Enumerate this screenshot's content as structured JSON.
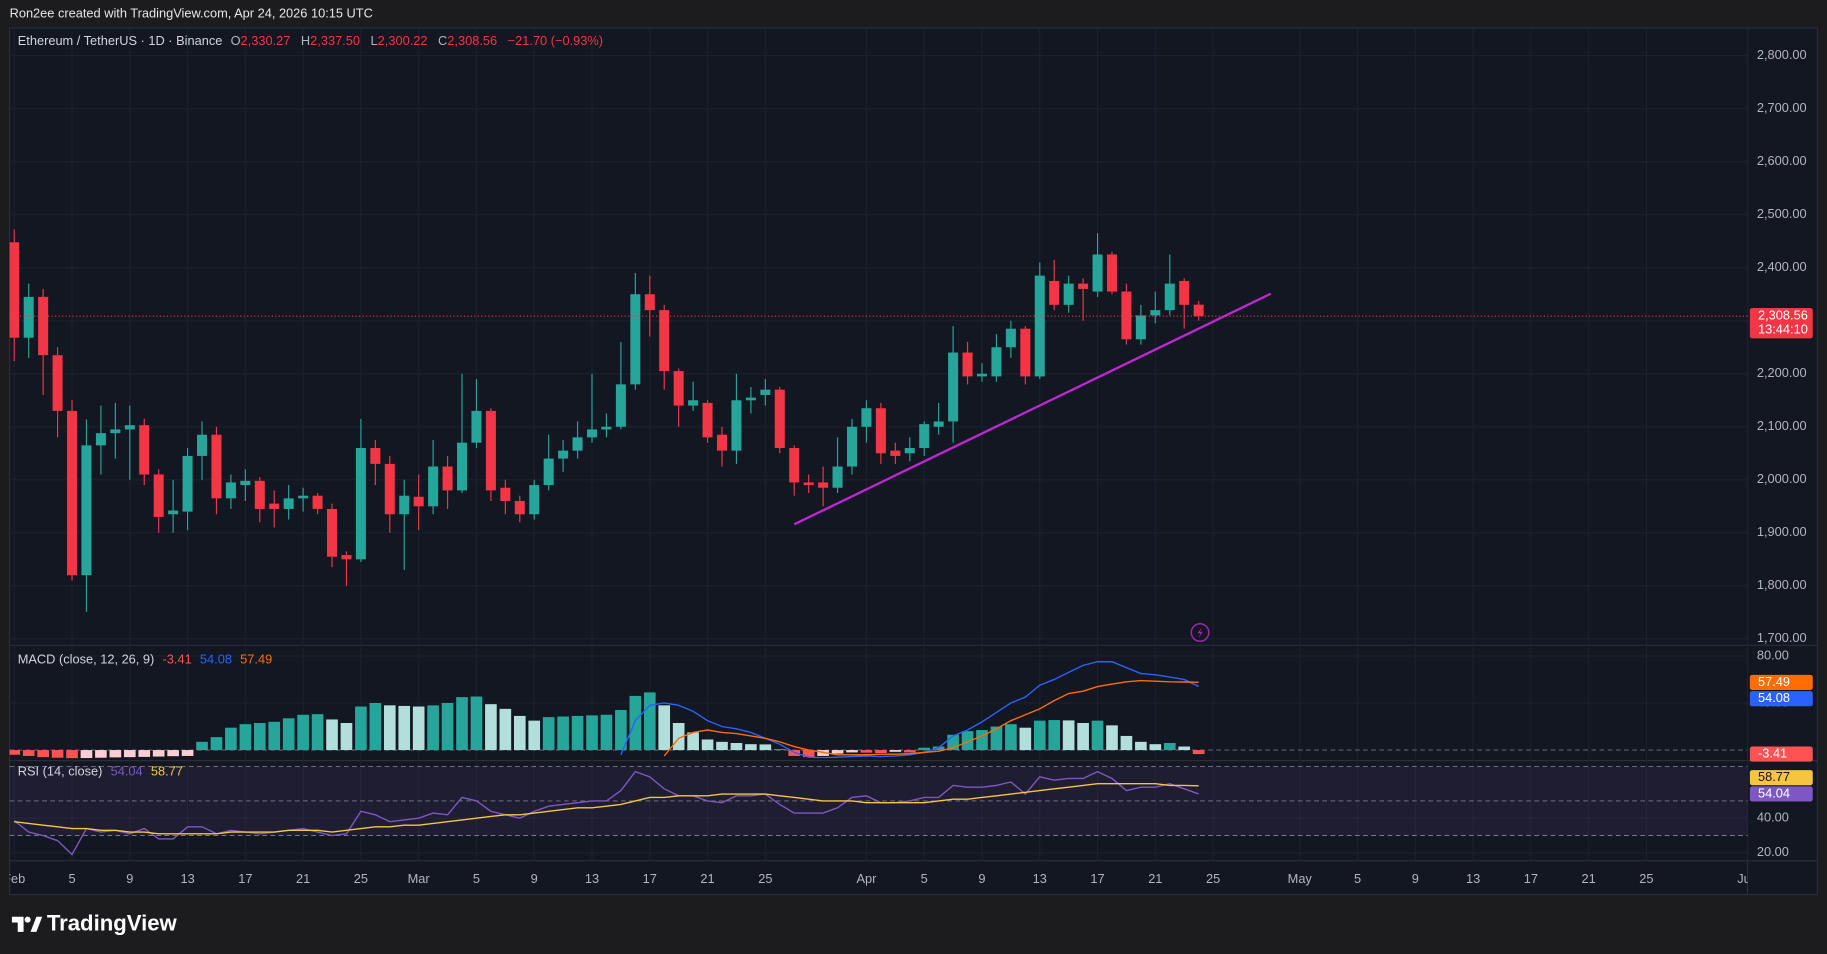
{
  "header": {
    "attribution": "Ron2ee created with TradingView.com, Apr 24, 2026 10:15 UTC"
  },
  "footer": {
    "brand": "TradingView"
  },
  "chart_data": [
    {
      "type": "candlestick",
      "symbol": "Ethereum / TetherUS · 1D · Binance",
      "ohlc_legend": [
        {
          "key": "O",
          "label": "2,330.27"
        },
        {
          "key": "H",
          "label": "2,337.50"
        },
        {
          "key": "L",
          "label": "2,300.22"
        },
        {
          "key": "C",
          "label": "2,308.56"
        }
      ],
      "change_label": "−21.70 (−0.93%)",
      "categories": [
        "Feb 1",
        "Feb 2",
        "Feb 3",
        "Feb 4",
        "Feb 5",
        "Feb 6",
        "Feb 7",
        "Feb 8",
        "Feb 9",
        "Feb 10",
        "Feb 11",
        "Feb 12",
        "Feb 13",
        "Feb 14",
        "Feb 15",
        "Feb 16",
        "Feb 17",
        "Feb 18",
        "Feb 19",
        "Feb 20",
        "Feb 21",
        "Feb 22",
        "Feb 23",
        "Feb 24",
        "Feb 25",
        "Feb 26",
        "Feb 27",
        "Feb 28",
        "Mar 1",
        "Mar 2",
        "Mar 3",
        "Mar 4",
        "Mar 5",
        "Mar 6",
        "Mar 7",
        "Mar 8",
        "Mar 9",
        "Mar 10",
        "Mar 11",
        "Mar 12",
        "Mar 13",
        "Mar 14",
        "Mar 15",
        "Mar 16",
        "Mar 17",
        "Mar 18",
        "Mar 19",
        "Mar 20",
        "Mar 21",
        "Mar 22",
        "Mar 23",
        "Mar 24",
        "Mar 25",
        "Mar 26",
        "Mar 27",
        "Mar 28",
        "Mar 29",
        "Mar 30",
        "Mar 31",
        "Apr 1",
        "Apr 2",
        "Apr 3",
        "Apr 4",
        "Apr 5",
        "Apr 6",
        "Apr 7",
        "Apr 8",
        "Apr 9",
        "Apr 10",
        "Apr 11",
        "Apr 12",
        "Apr 13",
        "Apr 14",
        "Apr 15",
        "Apr 16",
        "Apr 17",
        "Apr 18",
        "Apr 19",
        "Apr 20",
        "Apr 21",
        "Apr 22",
        "Apr 23",
        "Apr 24"
      ],
      "open": [
        2448,
        2268,
        2345,
        2235,
        2130,
        1820,
        2065,
        2088,
        2095,
        2103,
        2010,
        1935,
        1940,
        2045,
        2085,
        1965,
        1990,
        1998,
        1955,
        1945,
        1965,
        1970,
        1945,
        1858,
        1850,
        2060,
        2030,
        1935,
        1968,
        1950,
        2025,
        1980,
        2070,
        2130,
        1985,
        1960,
        1935,
        1990,
        2040,
        2055,
        2080,
        2095,
        2100,
        2180,
        2350,
        2320,
        2205,
        2140,
        2145,
        2085,
        2055,
        2150,
        2160,
        2170,
        2060,
        1995,
        1995,
        1985,
        2025,
        2100,
        2135,
        2055,
        2050,
        2060,
        2100,
        2110,
        2240,
        2195,
        2195,
        2250,
        2285,
        2195,
        2375,
        2330,
        2370,
        2355,
        2425,
        2355,
        2265,
        2310,
        2320,
        2375,
        2330.27
      ],
      "high": [
        2472,
        2370,
        2360,
        2250,
        2150,
        2114,
        2140,
        2145,
        2140,
        2115,
        2020,
        2000,
        2060,
        2110,
        2100,
        2010,
        2020,
        2005,
        1980,
        1990,
        1985,
        1975,
        1955,
        1865,
        2115,
        2075,
        2045,
        2000,
        2010,
        2075,
        2045,
        2200,
        2190,
        2135,
        2000,
        1970,
        2000,
        2085,
        2075,
        2110,
        2200,
        2125,
        2260,
        2390,
        2385,
        2330,
        2210,
        2185,
        2150,
        2100,
        2200,
        2175,
        2190,
        2175,
        2065,
        2010,
        2025,
        2080,
        2115,
        2150,
        2145,
        2070,
        2080,
        2110,
        2145,
        2290,
        2260,
        2220,
        2275,
        2300,
        2290,
        2410,
        2415,
        2385,
        2380,
        2465,
        2430,
        2370,
        2330,
        2355,
        2425,
        2380,
        2337.5
      ],
      "low": [
        2224,
        2230,
        2160,
        2080,
        1810,
        1751,
        2010,
        2040,
        2000,
        1990,
        1900,
        1900,
        1905,
        2000,
        1935,
        1945,
        1960,
        1920,
        1910,
        1925,
        1940,
        1935,
        1835,
        1800,
        1845,
        1990,
        1900,
        1830,
        1905,
        1935,
        1945,
        1975,
        2060,
        1960,
        1935,
        1920,
        1925,
        1980,
        2015,
        2040,
        2070,
        2080,
        2095,
        2170,
        2270,
        2170,
        2100,
        2130,
        2070,
        2025,
        2030,
        2125,
        2140,
        2050,
        1970,
        1975,
        1950,
        1975,
        2010,
        2070,
        2030,
        2030,
        2035,
        2045,
        2085,
        2070,
        2180,
        2185,
        2185,
        2230,
        2180,
        2190,
        2320,
        2315,
        2300,
        2345,
        2350,
        2255,
        2255,
        2295,
        2310,
        2285,
        2300.22
      ],
      "close": [
        2268,
        2345,
        2235,
        2130,
        1820,
        2065,
        2088,
        2095,
        2103,
        2010,
        1930,
        1942,
        2045,
        2085,
        1965,
        1995,
        1998,
        1945,
        1945,
        1965,
        1970,
        1945,
        1855,
        1850,
        2060,
        2030,
        1935,
        1970,
        1950,
        2025,
        1980,
        2070,
        2130,
        1980,
        1960,
        1935,
        1990,
        2040,
        2055,
        2080,
        2095,
        2100,
        2180,
        2350,
        2320,
        2205,
        2140,
        2150,
        2080,
        2055,
        2150,
        2155,
        2170,
        2060,
        1995,
        1990,
        1985,
        2025,
        2100,
        2135,
        2050,
        2045,
        2060,
        2105,
        2110,
        2240,
        2195,
        2200,
        2250,
        2285,
        2195,
        2385,
        2330,
        2370,
        2360,
        2425,
        2355,
        2265,
        2310,
        2320,
        2370,
        2330,
        2308.56
      ],
      "up_color": "#26a69a",
      "down_color": "#f23645",
      "ylim": [
        1690,
        2850
      ],
      "yticks": [
        {
          "value": 1700,
          "label": "1,700.00"
        },
        {
          "value": 1800,
          "label": "1,800.00"
        },
        {
          "value": 1900,
          "label": "1,900.00"
        },
        {
          "value": 2000,
          "label": "2,000.00"
        },
        {
          "value": 2100,
          "label": "2,100.00"
        },
        {
          "value": 2200,
          "label": "2,200.00"
        },
        {
          "value": 2300,
          "label": "2,300.00"
        },
        {
          "value": 2400,
          "label": "2,400.00"
        },
        {
          "value": 2500,
          "label": "2,500.00"
        },
        {
          "value": 2600,
          "label": "2,600.00"
        },
        {
          "value": 2700,
          "label": "2,700.00"
        },
        {
          "value": 2800,
          "label": "2,800.00"
        }
      ],
      "xticks": [
        {
          "value": "Feb 1",
          "label": "Feb"
        },
        {
          "value": "Feb 5",
          "label": "5"
        },
        {
          "value": "Feb 9",
          "label": "9"
        },
        {
          "value": "Feb 13",
          "label": "13"
        },
        {
          "value": "Feb 17",
          "label": "17"
        },
        {
          "value": "Feb 21",
          "label": "21"
        },
        {
          "value": "Feb 25",
          "label": "25"
        },
        {
          "value": "Mar 1",
          "label": "Mar"
        },
        {
          "value": "Mar 5",
          "label": "5"
        },
        {
          "value": "Mar 9",
          "label": "9"
        },
        {
          "value": "Mar 13",
          "label": "13"
        },
        {
          "value": "Mar 17",
          "label": "17"
        },
        {
          "value": "Mar 21",
          "label": "21"
        },
        {
          "value": "Mar 25",
          "label": "25"
        },
        {
          "value": "Apr 1",
          "label": "Apr"
        },
        {
          "value": "Apr 5",
          "label": "5"
        },
        {
          "value": "Apr 9",
          "label": "9"
        },
        {
          "value": "Apr 13",
          "label": "13"
        },
        {
          "value": "Apr 17",
          "label": "17"
        },
        {
          "value": "Apr 21",
          "label": "21"
        },
        {
          "value": "Apr 25",
          "label": "25"
        },
        {
          "value": "May 1",
          "label": "May"
        },
        {
          "value": "May 5",
          "label": "5"
        },
        {
          "value": "May 9",
          "label": "9"
        },
        {
          "value": "May 13",
          "label": "13"
        },
        {
          "value": "May 17",
          "label": "17"
        },
        {
          "value": "May 21",
          "label": "21"
        },
        {
          "value": "May 25",
          "label": "25"
        },
        {
          "value": "Jun 1",
          "label": "Jun"
        }
      ],
      "grid": true,
      "last_price": {
        "value": 2308.56,
        "label": "2,308.56",
        "countdown": "13:44:10"
      },
      "trendline": {
        "x": [
          "Mar 27",
          "Apr 29"
        ],
        "y": [
          1916,
          2351
        ],
        "color": "#c026d3"
      }
    },
    {
      "type": "macd",
      "title": "MACD (close, 12, 26, 9)",
      "histogram": {
        "values": [
          -4,
          -5,
          -6,
          -6.5,
          -7,
          -6.8,
          -6.5,
          -6.2,
          -6,
          -5.8,
          -5.5,
          -5.2,
          -5,
          7,
          11,
          19,
          22,
          23,
          24,
          27,
          30,
          30.5,
          26,
          23,
          37,
          40,
          38,
          37.5,
          37,
          38,
          40,
          45,
          45.5,
          39,
          35,
          29,
          25,
          28,
          28.5,
          29,
          29.5,
          30,
          34,
          46,
          49,
          38,
          23,
          15,
          9,
          7,
          6,
          5,
          4.8,
          0.5,
          -5,
          -6,
          -5,
          -3,
          -2,
          -2.2,
          -2.5,
          -1.5,
          -2,
          2,
          3,
          13,
          16,
          17,
          20,
          22,
          19,
          25,
          25.5,
          25.2,
          23,
          25,
          21,
          12,
          7,
          5,
          6,
          3,
          -3.41
        ],
        "colors": {
          "up_strong": "#26a69a",
          "up_weak": "#b2dfdb",
          "down_strong": "#ff5252",
          "down_weak": "#ffcdd2"
        }
      },
      "macd": {
        "color": "#2962ff",
        "values": [
          null,
          null,
          null,
          null,
          null,
          null,
          null,
          null,
          null,
          null,
          null,
          null,
          null,
          null,
          null,
          null,
          null,
          null,
          null,
          null,
          null,
          null,
          null,
          null,
          null,
          null,
          null,
          null,
          null,
          null,
          null,
          null,
          null,
          null,
          null,
          null,
          null,
          null,
          null,
          null,
          null,
          null,
          -4,
          25,
          38,
          40,
          38,
          33,
          25,
          20,
          18,
          15,
          10,
          5,
          -2,
          -6,
          -6.5,
          -6,
          -5.5,
          -5,
          -5.5,
          -5,
          -4,
          -2,
          2,
          12,
          17,
          24,
          32,
          40,
          45,
          55,
          60,
          66,
          72,
          75,
          75,
          70,
          65,
          64,
          62,
          60,
          54.08
        ]
      },
      "signal": {
        "color": "#ff6d00",
        "values": [
          null,
          null,
          null,
          null,
          null,
          null,
          null,
          null,
          null,
          null,
          null,
          null,
          null,
          null,
          null,
          null,
          null,
          null,
          null,
          null,
          null,
          null,
          null,
          null,
          null,
          null,
          null,
          null,
          null,
          null,
          null,
          null,
          null,
          null,
          null,
          null,
          null,
          null,
          null,
          null,
          null,
          null,
          null,
          null,
          null,
          -5,
          10,
          15,
          17,
          15,
          14,
          12,
          10,
          7,
          3,
          0,
          -2,
          -4,
          -4,
          -4,
          -3.5,
          -3.5,
          -3,
          -2,
          -1,
          2,
          7,
          12,
          18,
          25,
          30,
          35,
          42,
          48,
          50,
          54,
          56,
          58,
          59,
          58.5,
          58,
          57.8,
          57.49
        ]
      },
      "ylim": [
        -7,
        88
      ],
      "yticks": [
        {
          "value": 80,
          "label": "80.00"
        },
        {
          "value": 40,
          "label": "40.00"
        }
      ],
      "zero_line": 0
    },
    {
      "type": "rsi",
      "title": "RSI (14, close)",
      "rsi": {
        "color": "#7e57c2",
        "values": [
          38.6,
          32,
          30,
          27,
          19,
          34,
          32,
          33,
          31,
          34,
          28,
          28,
          35,
          35,
          31,
          33,
          32,
          31,
          32,
          33,
          34,
          32,
          30,
          31,
          44,
          42,
          38,
          39,
          40,
          43,
          42,
          52,
          50,
          44,
          42,
          40,
          44,
          47,
          48,
          49,
          50,
          50,
          56,
          67,
          64,
          57,
          53,
          53,
          50,
          49,
          53,
          53,
          54,
          48,
          43,
          43,
          43,
          46,
          52,
          53,
          49,
          49,
          50,
          52,
          52,
          59,
          58,
          58,
          59,
          61,
          54,
          64,
          62,
          63,
          63,
          67,
          63,
          56,
          58,
          58,
          60,
          57,
          54.04
        ]
      },
      "ma": {
        "color": "#f5c542",
        "values": [
          38,
          37,
          36,
          35,
          34,
          34,
          33,
          33,
          32,
          32,
          31,
          31,
          31,
          31,
          31,
          32,
          32,
          32,
          32,
          33,
          33,
          33,
          32,
          33,
          34,
          35,
          35,
          36,
          36,
          37,
          38,
          39,
          40,
          41,
          42,
          42,
          43,
          44,
          45,
          46,
          46,
          47,
          48,
          50,
          52,
          52,
          53,
          53,
          53,
          54,
          54,
          54,
          54,
          53,
          52,
          51,
          50,
          50,
          50,
          49,
          49,
          49,
          49,
          49,
          50,
          51,
          51,
          52,
          53,
          54,
          55,
          56,
          57,
          58,
          59,
          60,
          60,
          60,
          60,
          60,
          59,
          59,
          58.77
        ]
      },
      "ylim": [
        16,
        72
      ],
      "yticks": [
        {
          "value": 40,
          "label": "40.00"
        },
        {
          "value": 20,
          "label": "20.00"
        }
      ],
      "bands": {
        "upper": 70,
        "middle": 50,
        "lower": 30
      }
    }
  ]
}
